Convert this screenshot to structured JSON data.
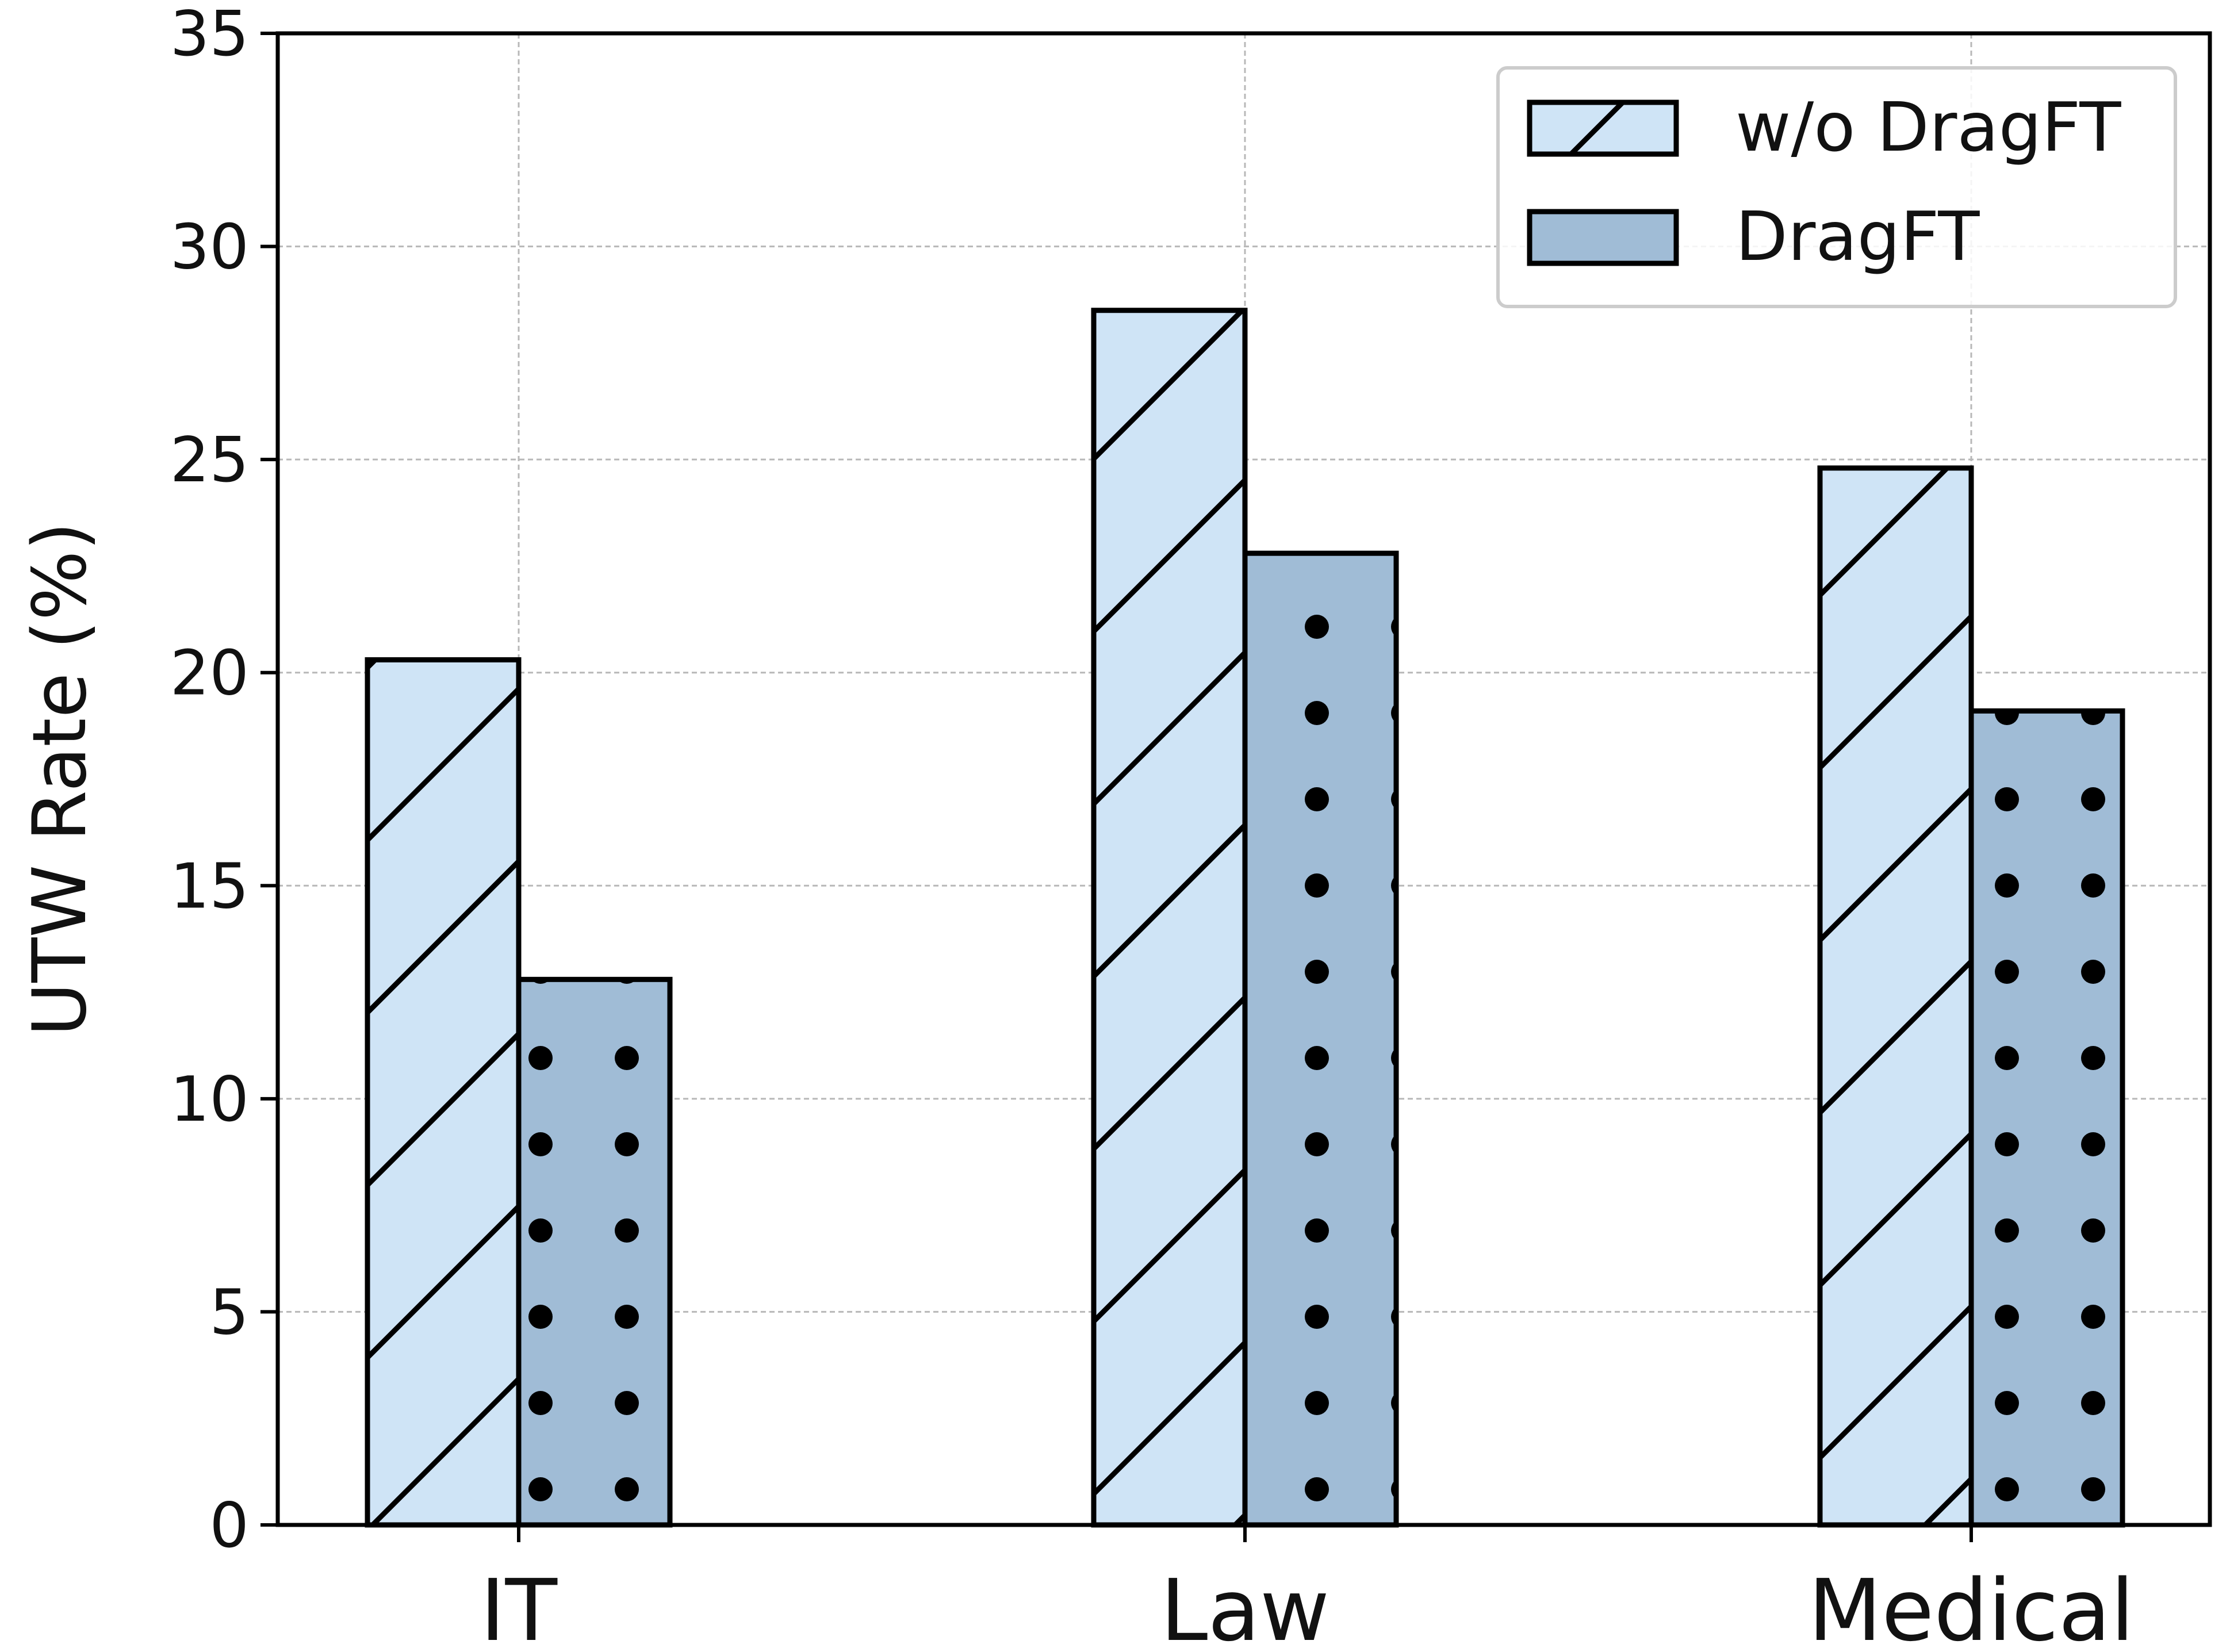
{
  "chart_data": {
    "type": "bar",
    "title": "",
    "xlabel": "",
    "ylabel": "UTW Rate (%)",
    "ylim": [
      0,
      35
    ],
    "yticks": [
      0,
      5,
      10,
      15,
      20,
      25,
      30,
      35
    ],
    "categories": [
      "IT",
      "Law",
      "Medical"
    ],
    "series": [
      {
        "name": "w/o DragFT",
        "values": [
          20.3,
          28.5,
          24.8
        ],
        "color": "#cfe4f6",
        "pattern": "diagonal-hatch"
      },
      {
        "name": "DragFT",
        "values": [
          12.8,
          22.8,
          19.1
        ],
        "color": "#a0bcd6",
        "pattern": "dots"
      }
    ],
    "grid": true,
    "legend_position": "top-right"
  }
}
